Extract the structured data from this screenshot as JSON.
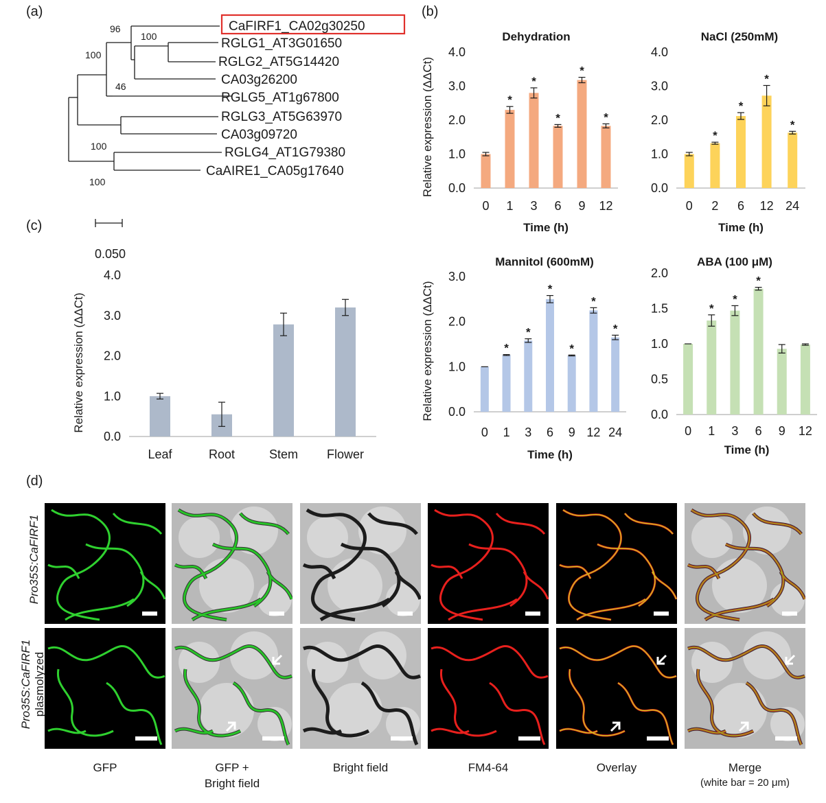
{
  "panels": {
    "a": "(a)",
    "b": "(b)",
    "c": "(c)",
    "d": "(d)"
  },
  "tree": {
    "scale_label": "0.050",
    "highlight_color": "#e0302b",
    "leaves": [
      {
        "label": "CaFIRF1_CA02g30250",
        "highlight": true
      },
      {
        "label": "RGLG1_AT3G01650"
      },
      {
        "label": "RGLG2_AT5G14420"
      },
      {
        "label": "CA03g26200"
      },
      {
        "label": "RGLG5_AT1g67800"
      },
      {
        "label": "RGLG3_AT5G63970"
      },
      {
        "label": "CA03g09720"
      },
      {
        "label": "RGLG4_AT1G79380"
      },
      {
        "label": "CaAIRE1_CA05g17640"
      }
    ],
    "bootstrap": [
      "96",
      "100",
      "100",
      "46",
      "100",
      "100"
    ]
  },
  "chart_data": [
    {
      "id": "dehydration",
      "type": "bar",
      "title": "Dehydration",
      "xlabel": "Time (h)",
      "ylabel": "Relative expression (ΔΔCt)",
      "categories": [
        "0",
        "1",
        "3",
        "6",
        "9",
        "12"
      ],
      "values": [
        1.0,
        2.3,
        2.8,
        1.83,
        3.18,
        1.83
      ],
      "errors": [
        0.05,
        0.1,
        0.15,
        0.04,
        0.08,
        0.06
      ],
      "significant": [
        false,
        true,
        true,
        true,
        true,
        true
      ],
      "ylim": [
        0,
        4
      ],
      "yticks": [
        "0.0",
        "1.0",
        "2.0",
        "3.0",
        "4.0"
      ],
      "color": "#f4a97f"
    },
    {
      "id": "nacl",
      "type": "bar",
      "title": "NaCl (250mM)",
      "xlabel": "Time (h)",
      "ylabel": "",
      "categories": [
        "0",
        "2",
        "6",
        "12",
        "24"
      ],
      "values": [
        1.0,
        1.32,
        2.12,
        2.72,
        1.63
      ],
      "errors": [
        0.05,
        0.03,
        0.1,
        0.3,
        0.04
      ],
      "significant": [
        false,
        true,
        true,
        true,
        true
      ],
      "ylim": [
        0,
        4
      ],
      "yticks": [
        "0.0",
        "1.0",
        "2.0",
        "3.0",
        "4.0"
      ],
      "color": "#fdd35a"
    },
    {
      "id": "tissue",
      "type": "bar",
      "title": "",
      "xlabel": "",
      "ylabel": "Relative expression (ΔΔCt)",
      "categories": [
        "Leaf",
        "Root",
        "Stem",
        "Flower"
      ],
      "values": [
        1.0,
        0.55,
        2.78,
        3.2
      ],
      "errors": [
        0.07,
        0.3,
        0.28,
        0.2
      ],
      "significant": [
        false,
        false,
        false,
        false
      ],
      "ylim": [
        0,
        4
      ],
      "yticks": [
        "0.0",
        "1.0",
        "2.0",
        "3.0",
        "4.0"
      ],
      "color": "#adb9ca"
    },
    {
      "id": "mannitol",
      "type": "bar",
      "title": "Mannitol (600mM)",
      "xlabel": "Time (h)",
      "ylabel": "Relative expression (ΔΔCt)",
      "categories": [
        "0",
        "1",
        "3",
        "6",
        "9",
        "12",
        "24"
      ],
      "values": [
        1.0,
        1.26,
        1.58,
        2.5,
        1.25,
        2.25,
        1.65
      ],
      "errors": [
        0.0,
        0.01,
        0.04,
        0.08,
        0.01,
        0.06,
        0.05
      ],
      "significant": [
        false,
        true,
        true,
        true,
        true,
        true,
        true
      ],
      "ylim": [
        0,
        3
      ],
      "yticks": [
        "0.0",
        "1.0",
        "2.0",
        "3.0"
      ],
      "color": "#b4c7e7"
    },
    {
      "id": "aba",
      "type": "bar",
      "title": "ABA (100 μM)",
      "xlabel": "Time (h)",
      "ylabel": "",
      "categories": [
        "0",
        "1",
        "3",
        "6",
        "9",
        "12"
      ],
      "values": [
        1.0,
        1.33,
        1.47,
        1.78,
        0.93,
        0.99
      ],
      "errors": [
        0.0,
        0.08,
        0.07,
        0.02,
        0.06,
        0.01
      ],
      "significant": [
        false,
        true,
        true,
        true,
        false,
        false
      ],
      "ylim": [
        0,
        2
      ],
      "yticks": [
        "0.0",
        "0.5",
        "1.0",
        "1.5",
        "2.0"
      ],
      "color": "#c5e0b4"
    }
  ],
  "microscopy": {
    "row_labels": [
      {
        "italic": "Pro35S:CaFIRF1",
        "plain": ""
      },
      {
        "italic": "Pro35S:CaFIRF1",
        "plain": "plasmolyzed"
      }
    ],
    "columns": [
      {
        "label": "GFP",
        "label2": "",
        "kind": "gfp"
      },
      {
        "label": "GFP +",
        "label2": "Bright field",
        "kind": "gfpbf"
      },
      {
        "label": "Bright field",
        "label2": "",
        "kind": "bf"
      },
      {
        "label": "FM4-64",
        "label2": "",
        "kind": "fm"
      },
      {
        "label": "Overlay",
        "label2": "",
        "kind": "overlay"
      },
      {
        "label": "Merge",
        "label2": "(white bar = 20 μm)",
        "kind": "merge"
      }
    ],
    "arrows_columns": [
      "gfpbf",
      "overlay",
      "merge"
    ]
  }
}
